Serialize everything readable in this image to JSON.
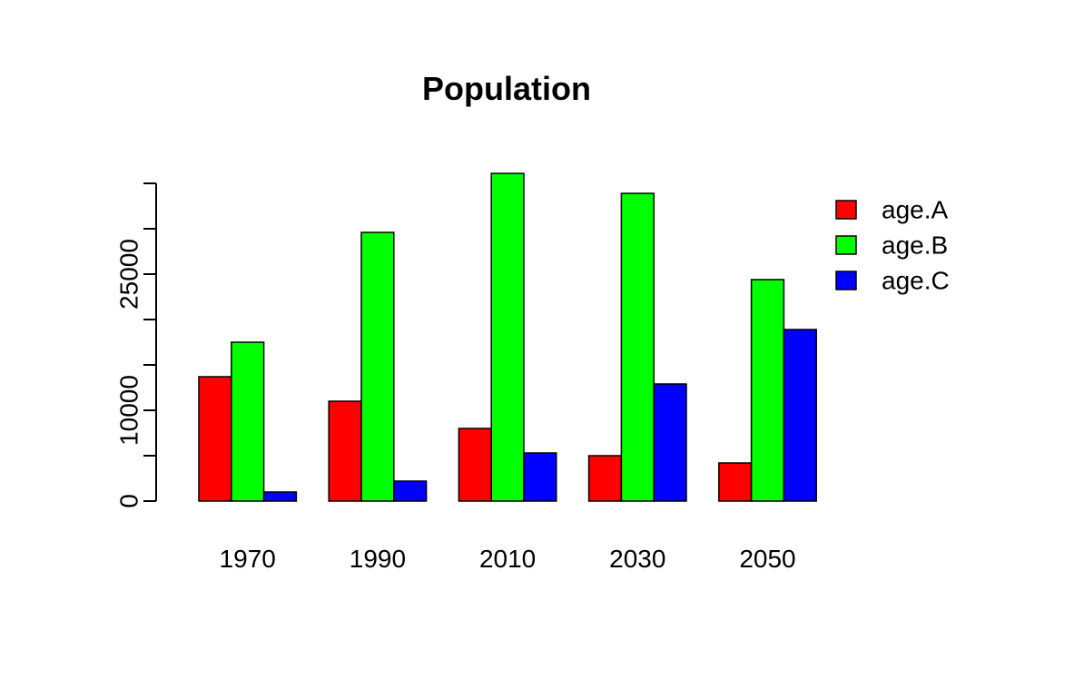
{
  "chart_data": {
    "type": "bar",
    "title": "Population",
    "xlabel": "",
    "ylabel": "",
    "categories": [
      "1970",
      "1990",
      "2010",
      "2030",
      "2050"
    ],
    "series": [
      {
        "name": "age.A",
        "color": "#ff0000",
        "values": [
          13700,
          11000,
          8000,
          5000,
          4200
        ]
      },
      {
        "name": "age.B",
        "color": "#00ff00",
        "values": [
          17500,
          29600,
          36100,
          33900,
          24400
        ]
      },
      {
        "name": "age.C",
        "color": "#0000ff",
        "values": [
          1000,
          2200,
          5300,
          12900,
          18900
        ]
      }
    ],
    "ylim": [
      0,
      35000
    ],
    "yticks": [
      0,
      5000,
      10000,
      15000,
      20000,
      25000,
      30000,
      35000
    ],
    "ytick_labels": [
      "0",
      "",
      "10000",
      "",
      "",
      "25000",
      "",
      ""
    ],
    "grid": false,
    "legend_position": "top-right"
  }
}
